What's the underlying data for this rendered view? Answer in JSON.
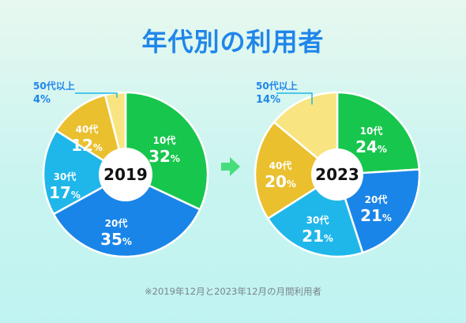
{
  "title": "年代別の利用者",
  "footnote": "※2019年12月と2023年12月の月間利用者",
  "colors": {
    "title": "#1f86ea",
    "teen": "#17c64d",
    "twenties": "#1a85e8",
    "thirties": "#1fb7ea",
    "forties": "#eac02f",
    "fifties": "#f8e582",
    "white": "#ffffff",
    "arrow": "#47dd7d"
  },
  "chart_data": [
    {
      "type": "pie",
      "year_label": "2019",
      "slices": [
        {
          "label": "10代",
          "value": 32,
          "value_text": "32",
          "unit": "%",
          "color": "#17c64d"
        },
        {
          "label": "20代",
          "value": 35,
          "value_text": "35",
          "unit": "%",
          "color": "#1a85e8"
        },
        {
          "label": "30代",
          "value": 17,
          "value_text": "17",
          "unit": "%",
          "color": "#1fb7ea"
        },
        {
          "label": "40代",
          "value": 12,
          "value_text": "12",
          "unit": "%",
          "color": "#eac02f"
        },
        {
          "label": "50代以上",
          "value": 4,
          "value_text": "4%",
          "color": "#f8e582"
        }
      ]
    },
    {
      "type": "pie",
      "year_label": "2023",
      "slices": [
        {
          "label": "10代",
          "value": 24,
          "value_text": "24",
          "unit": "%",
          "color": "#17c64d"
        },
        {
          "label": "20代",
          "value": 21,
          "value_text": "21",
          "unit": "%",
          "color": "#1a85e8"
        },
        {
          "label": "30代",
          "value": 21,
          "value_text": "21",
          "unit": "%",
          "color": "#1fb7ea"
        },
        {
          "label": "40代",
          "value": 20,
          "value_text": "20",
          "unit": "%",
          "color": "#eac02f"
        },
        {
          "label": "50代以上",
          "value": 14,
          "value_text": "14%",
          "color": "#f8e582"
        }
      ]
    }
  ]
}
